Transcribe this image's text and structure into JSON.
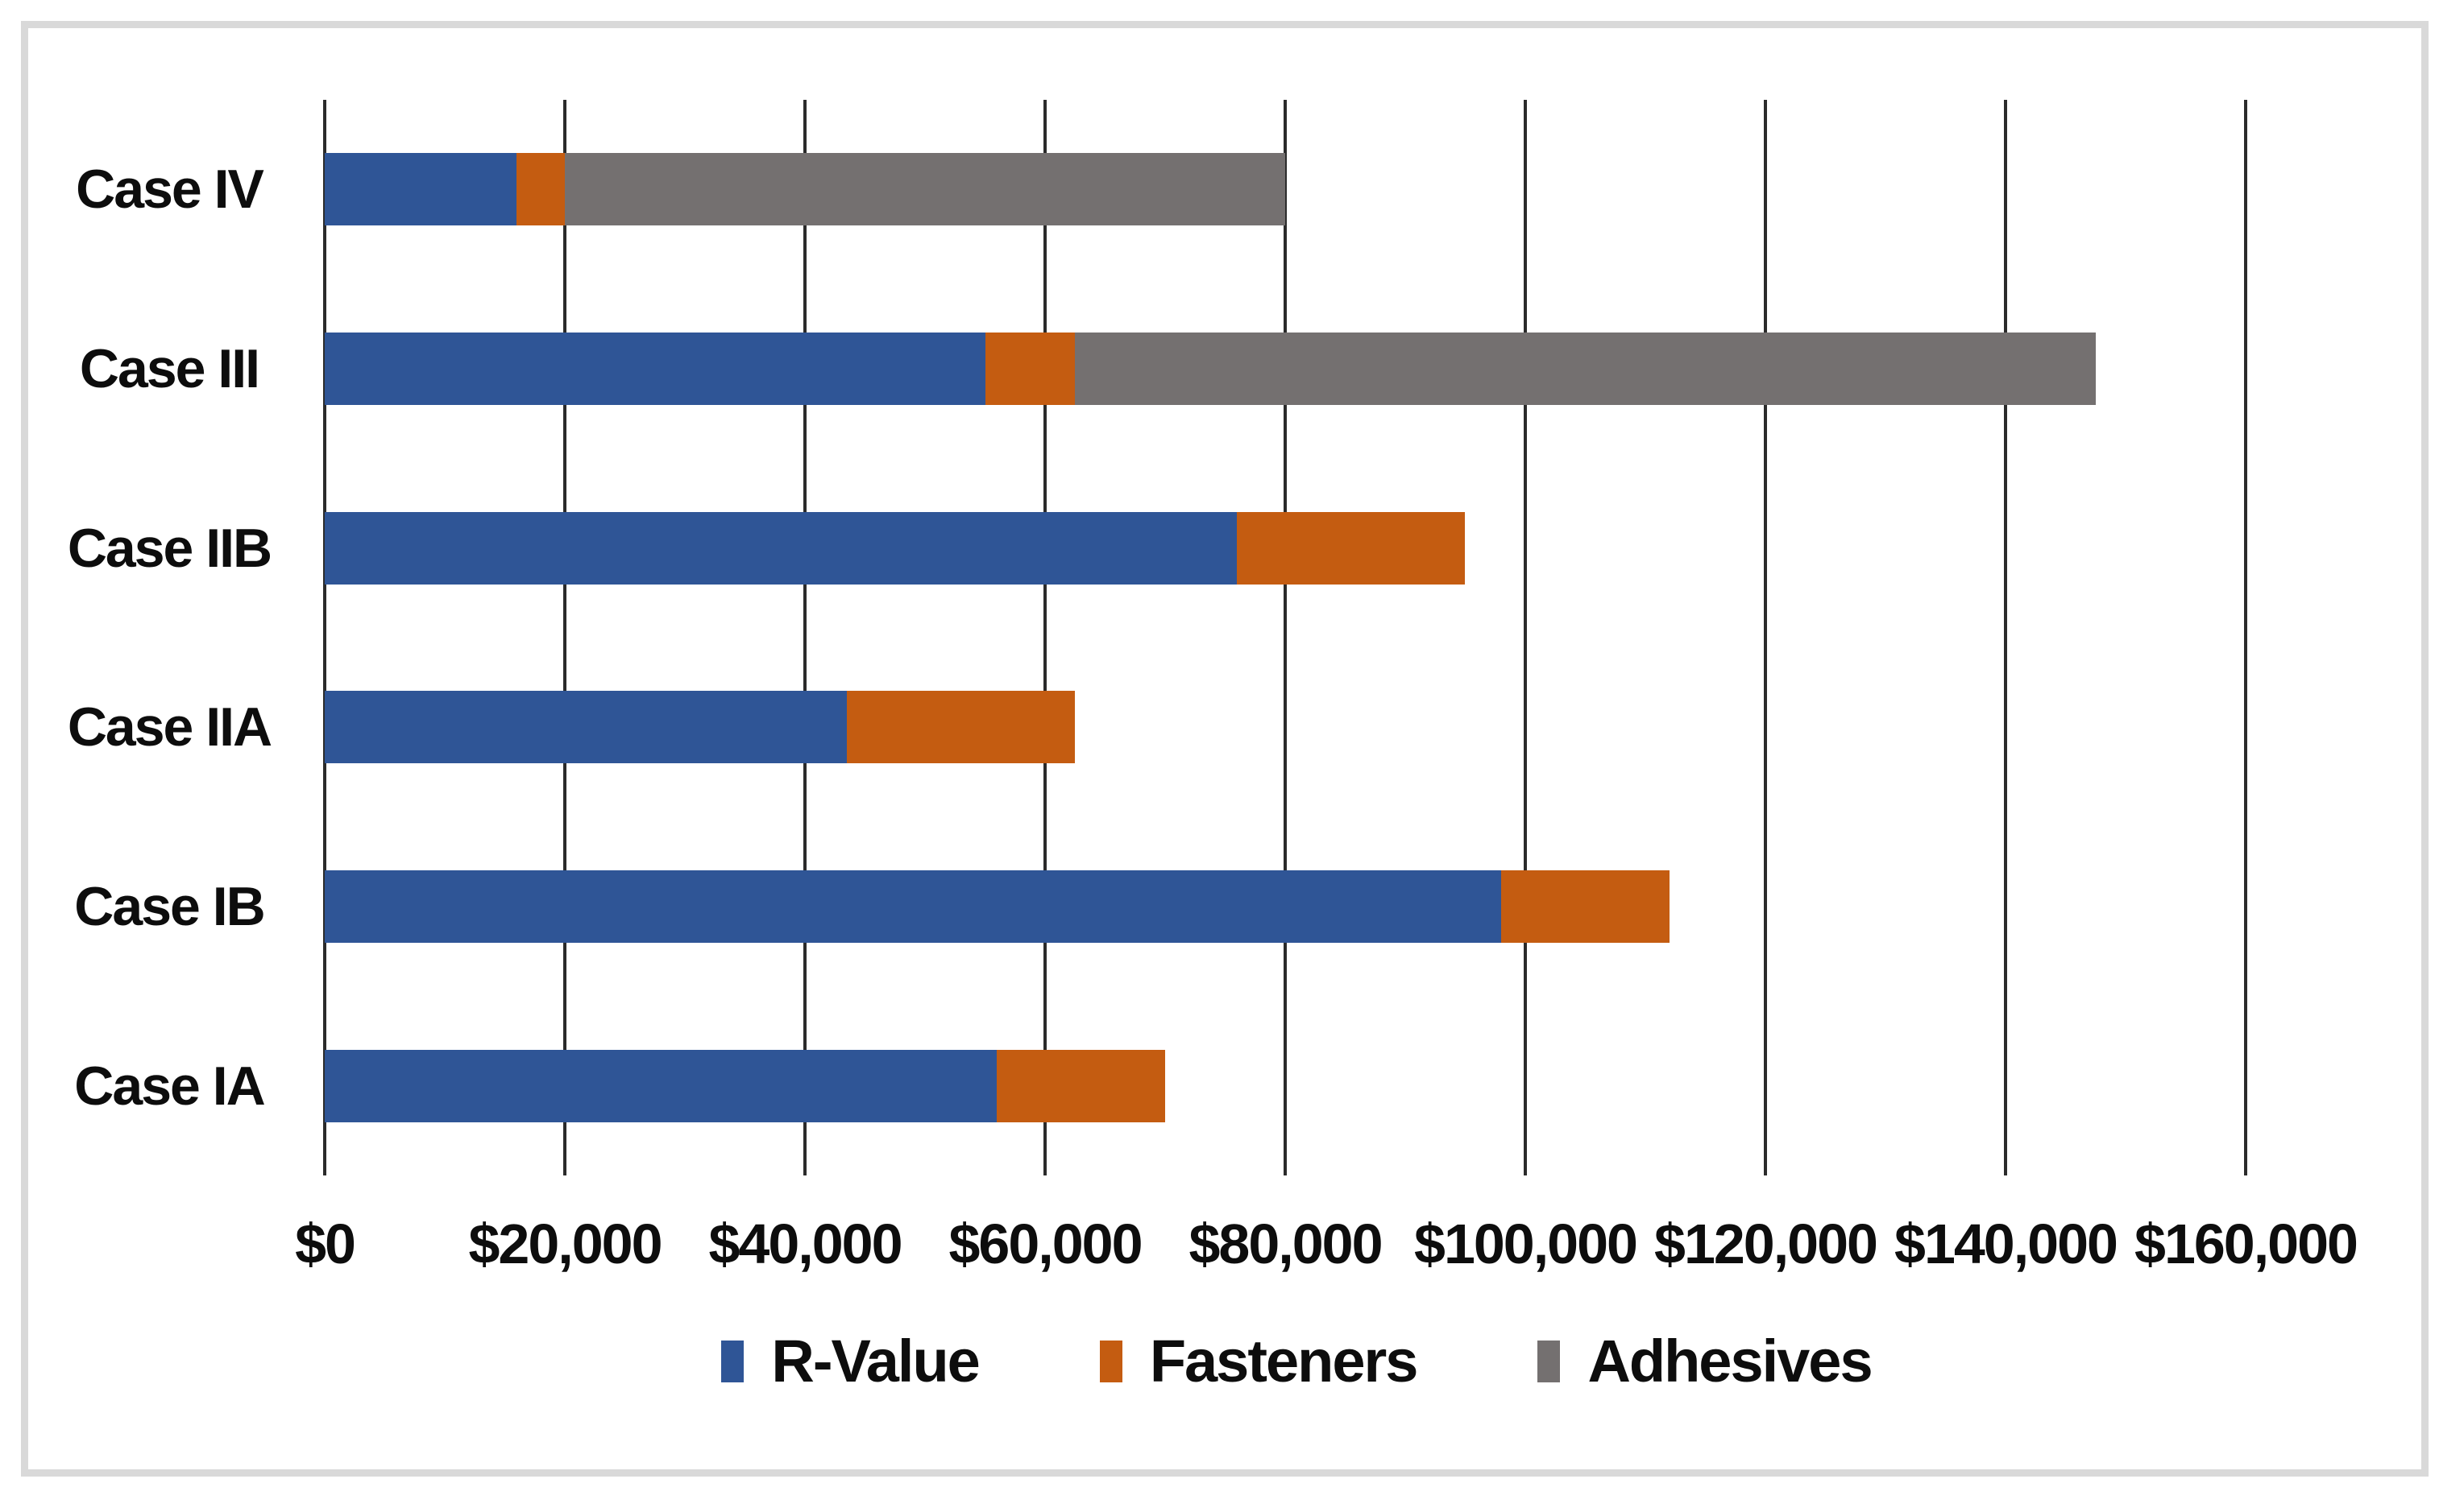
{
  "chart_data": {
    "type": "bar",
    "orientation": "horizontal",
    "stacked": true,
    "title": "",
    "xlabel": "",
    "ylabel": "",
    "categories": [
      "Case IV",
      "Case III",
      "Case IIB",
      "Case IIA",
      "Case IB",
      "Case IA"
    ],
    "series": [
      {
        "name": "R-Value",
        "color": "#2F5596",
        "values": [
          16000,
          55000,
          76000,
          43500,
          98000,
          56000
        ]
      },
      {
        "name": "Fasteners",
        "color": "#C45C11",
        "values": [
          4000,
          7500,
          19000,
          19000,
          14000,
          14000
        ]
      },
      {
        "name": "Adhesives",
        "color": "#747070",
        "values": [
          60000,
          85000,
          0,
          0,
          0,
          0
        ]
      }
    ],
    "totals_by_category": [
      80000,
      147500,
      95000,
      62500,
      112000,
      70000
    ],
    "x_axis": {
      "min": 0,
      "max": 160000,
      "tick_step": 20000,
      "tick_labels": [
        "$0",
        "$20,000",
        "$40,000",
        "$60,000",
        "$80,000",
        "$100,000",
        "$120,000",
        "$140,000",
        "$160,000"
      ]
    },
    "grid": "vertical-only",
    "gridline_color": "#2b2b2b",
    "legend_position": "bottom",
    "legend": [
      "R-Value",
      "Fasteners",
      "Adhesives"
    ],
    "frame_border_color": "#D9D9D9",
    "background_color": "#ffffff"
  }
}
